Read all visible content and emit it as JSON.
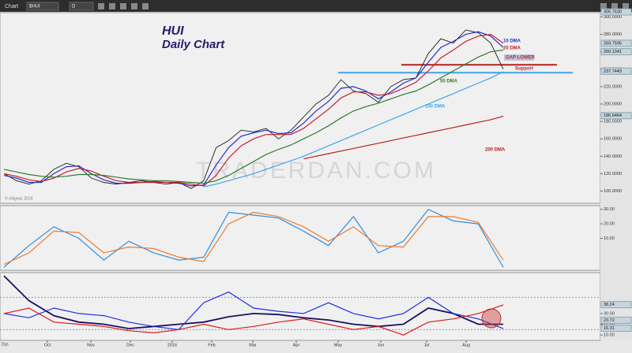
{
  "toolbar": {
    "title": "Chart",
    "symbol": "$HUI",
    "interval": "D"
  },
  "price_panel": {
    "title": "HUI",
    "subtitle": "Daily Chart",
    "ylim": [
      86,
      305
    ],
    "yticks": [
      {
        "value": 300,
        "label": "300.0000"
      },
      {
        "value": 280,
        "label": "280.0000"
      },
      {
        "value": 260,
        "label": "260.0000"
      },
      {
        "value": 240,
        "label": "240.0000"
      },
      {
        "value": 220,
        "label": "220.0000"
      },
      {
        "value": 200,
        "label": "200.0000"
      },
      {
        "value": 180,
        "label": "180.0000"
      },
      {
        "value": 160,
        "label": "160.0000"
      },
      {
        "value": 140,
        "label": "140.0000"
      },
      {
        "value": 120,
        "label": "120.0000"
      },
      {
        "value": 100,
        "label": "100.0000"
      }
    ],
    "series": [
      {
        "name": "Close",
        "color": "#1e1e1e",
        "values": [
          120,
          112,
          108,
          112,
          125,
          132,
          128,
          115,
          110,
          108,
          110,
          112,
          110,
          108,
          110,
          103,
          112,
          150,
          158,
          170,
          168,
          172,
          160,
          170,
          185,
          200,
          210,
          228,
          215,
          212,
          202,
          220,
          228,
          230,
          258,
          275,
          270,
          285,
          282,
          270,
          240
        ]
      },
      {
        "name": "10 DMA",
        "color": "#2430c8",
        "values": [
          118,
          115,
          110,
          110,
          120,
          128,
          129,
          120,
          113,
          109,
          109,
          110,
          111,
          110,
          109,
          106,
          107,
          130,
          150,
          163,
          167,
          170,
          166,
          167,
          178,
          192,
          203,
          218,
          220,
          215,
          206,
          214,
          224,
          230,
          248,
          265,
          272,
          280,
          283,
          278,
          265
        ]
      },
      {
        "name": "20 DMA",
        "color": "#c4202c",
        "values": [
          120,
          117,
          113,
          111,
          115,
          122,
          126,
          123,
          117,
          112,
          110,
          110,
          110,
          110,
          110,
          108,
          106,
          118,
          138,
          152,
          160,
          165,
          165,
          165,
          172,
          183,
          194,
          207,
          214,
          214,
          210,
          212,
          218,
          225,
          238,
          253,
          262,
          272,
          278,
          280,
          270
        ]
      },
      {
        "name": "50 DMA",
        "color": "#2f7a2f",
        "values": [
          125,
          122,
          119,
          117,
          116,
          117,
          119,
          119,
          118,
          116,
          114,
          113,
          112,
          112,
          111,
          110,
          109,
          112,
          118,
          126,
          134,
          142,
          148,
          153,
          160,
          167,
          175,
          184,
          192,
          197,
          201,
          206,
          211,
          215,
          222,
          230,
          238,
          246,
          254,
          260,
          262
        ]
      },
      {
        "name": "100 DMA",
        "color": "#3ea6e6",
        "values": [
          null,
          null,
          null,
          null,
          null,
          null,
          null,
          null,
          null,
          null,
          null,
          null,
          null,
          null,
          null,
          null,
          105,
          108,
          112,
          116,
          120,
          125,
          130,
          135,
          140,
          146,
          152,
          158,
          164,
          170,
          176,
          182,
          188,
          194,
          200,
          206,
          212,
          218,
          224,
          230,
          237
        ]
      },
      {
        "name": "200 DMA",
        "color": "#b4201e",
        "values": [
          null,
          null,
          null,
          null,
          null,
          null,
          null,
          null,
          null,
          null,
          null,
          null,
          null,
          null,
          null,
          null,
          null,
          null,
          null,
          null,
          null,
          null,
          null,
          null,
          137,
          140,
          143,
          146,
          149,
          152,
          155,
          158,
          161,
          164,
          167,
          170,
          173,
          176,
          179,
          182,
          186
        ]
      }
    ],
    "levels": [
      {
        "name": "Support",
        "value": 236,
        "color": "#3ea6e6"
      },
      {
        "name": "GAP LOWER",
        "value": 245,
        "color": "#b4201e"
      }
    ],
    "price_tags": [
      {
        "value": 305.763,
        "label": "305.7630"
      },
      {
        "value": 269.7595,
        "label": "269.7595"
      },
      {
        "value": 260.1341,
        "label": "260.1341"
      },
      {
        "value": 237.7443,
        "label": "237.7443"
      },
      {
        "value": 186.6464,
        "label": "186.6464"
      }
    ]
  },
  "oscillator_panel": {
    "ylim": [
      -12,
      32
    ],
    "yticks": [
      {
        "value": 30,
        "label": "30.00"
      },
      {
        "value": 20,
        "label": "20.00"
      },
      {
        "value": 10,
        "label": "10.00"
      }
    ],
    "series": [
      {
        "color": "#2c8ee8",
        "values": [
          -10,
          5,
          18,
          10,
          -5,
          8,
          0,
          -5,
          -3,
          28,
          26,
          24,
          15,
          5,
          25,
          0,
          8,
          30,
          22,
          20,
          -10
        ]
      },
      {
        "color": "#f07a2a",
        "values": [
          -8,
          0,
          15,
          14,
          0,
          4,
          3,
          -3,
          -6,
          20,
          28,
          25,
          18,
          8,
          18,
          5,
          4,
          25,
          25,
          21,
          -5
        ]
      }
    ]
  },
  "indicator_panel": {
    "ylim": [
      5,
      68
    ],
    "yticks": [
      {
        "value": 30,
        "label": "30.00"
      },
      {
        "value": 20,
        "label": "20.00"
      },
      {
        "value": 10,
        "label": "10.00"
      }
    ],
    "ref_levels": [
      45,
      15
    ],
    "series": [
      {
        "color": "#1a1060",
        "values": [
          65,
          42,
          28,
          22,
          20,
          16,
          18,
          20,
          22,
          27,
          30,
          29,
          26,
          24,
          20,
          18,
          20,
          35,
          30,
          20,
          20
        ]
      },
      {
        "color": "#1f2ee0",
        "values": [
          30,
          26,
          35,
          30,
          28,
          22,
          18,
          15,
          40,
          50,
          35,
          32,
          30,
          40,
          30,
          25,
          30,
          45,
          30,
          25,
          16
        ]
      },
      {
        "color": "#e01818",
        "values": [
          30,
          35,
          22,
          20,
          18,
          14,
          12,
          15,
          20,
          15,
          18,
          22,
          25,
          20,
          15,
          18,
          10,
          22,
          25,
          30,
          38
        ]
      }
    ],
    "tags": [
      {
        "value": 38.24,
        "label": "38.24"
      },
      {
        "value": 23.72,
        "label": "23.72"
      },
      {
        "value": 16.31,
        "label": "16.31"
      }
    ]
  },
  "annotations": [
    "10 DMA",
    "20 DMA",
    "GAP LOWER",
    "Support",
    "50 DMA",
    "100 DMA",
    "200 DMA"
  ],
  "watermark": "TRADERDAN.COM",
  "copyright": "© eSignal, 2016",
  "x_axis": {
    "unit": "Dys",
    "labels": [
      "Oct",
      "Nov",
      "Dec",
      "2016",
      "Feb",
      "Mar",
      "Apr",
      "May",
      "Jun",
      "Jul",
      "Aug"
    ]
  }
}
